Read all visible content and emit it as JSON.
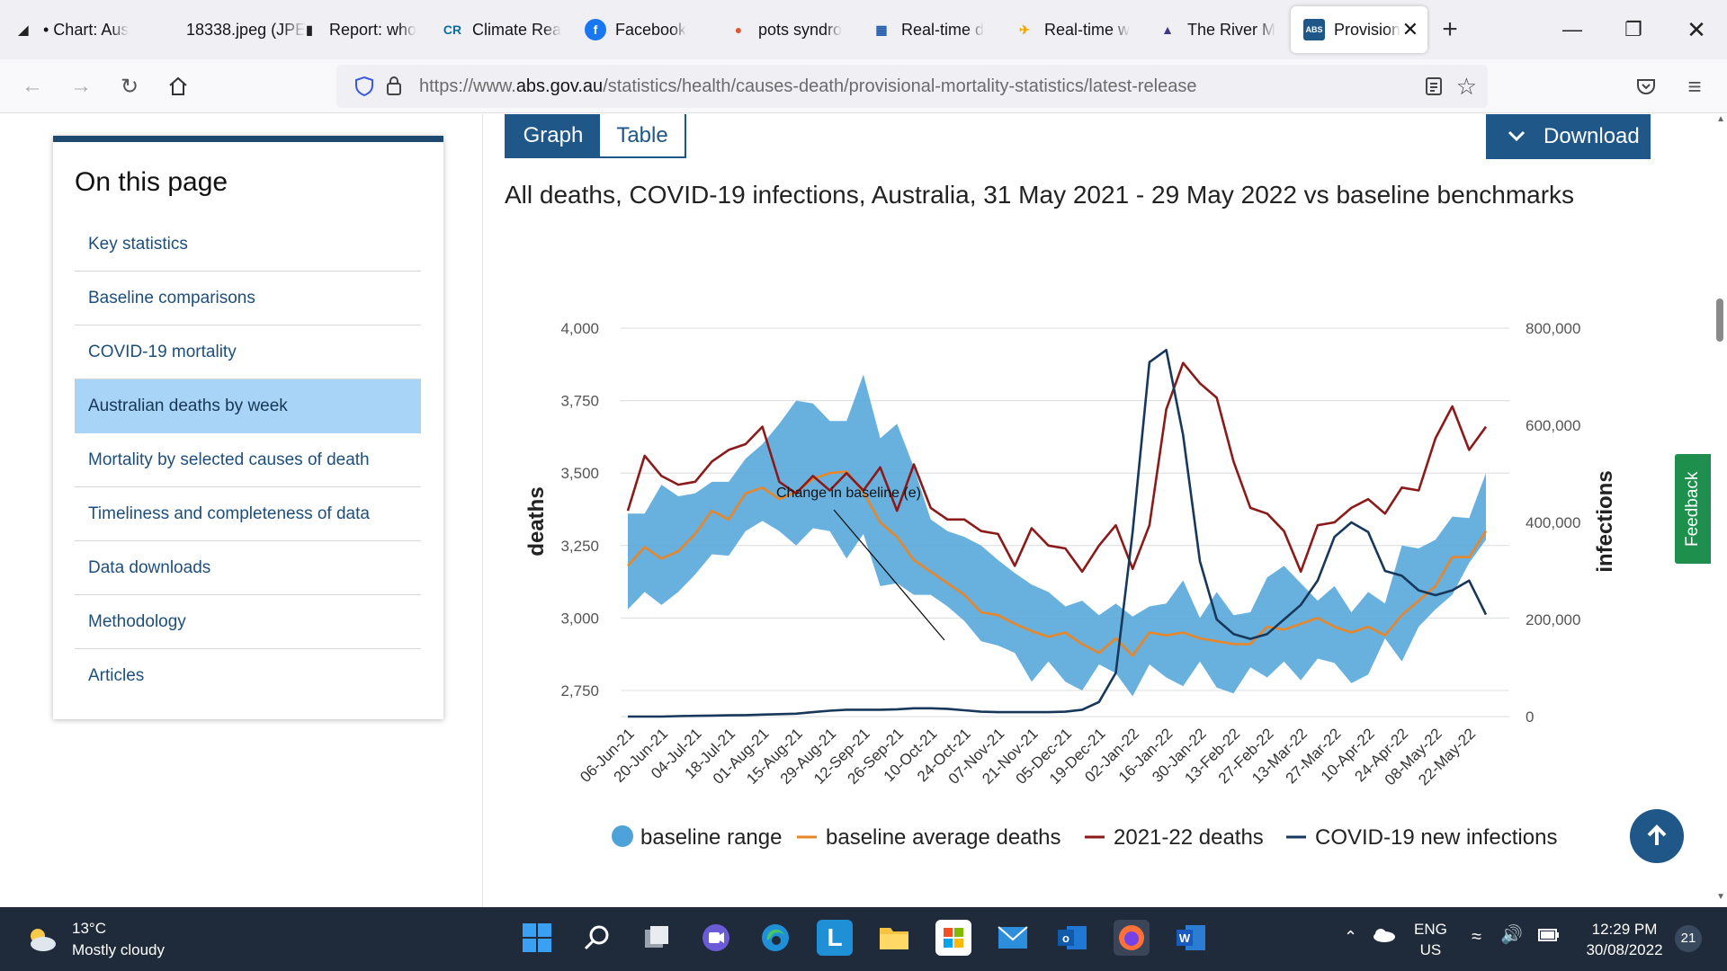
{
  "browser": {
    "tabs": [
      {
        "label": "• Chart: Aus",
        "icon": "chart-icon"
      },
      {
        "label": "18338.jpeg (JPE",
        "icon": "image-icon"
      },
      {
        "label": "Report: who",
        "icon": "report-icon"
      },
      {
        "label": "Climate Rea",
        "icon": "climate-icon"
      },
      {
        "label": "Facebook",
        "icon": "facebook-icon"
      },
      {
        "label": "pots syndro",
        "icon": "duckduckgo-icon"
      },
      {
        "label": "Real-time d",
        "icon": "realtime-icon"
      },
      {
        "label": "Real-time w",
        "icon": "plane-icon"
      },
      {
        "label": "The River M",
        "icon": "river-icon"
      },
      {
        "label": "Provision",
        "icon": "abs-icon"
      }
    ],
    "url_prefix": "https://www.",
    "url_domain": "abs.gov.au",
    "url_path": "/statistics/health/causes-death/provisional-mortality-statistics/latest-release"
  },
  "sidebar": {
    "title": "On this page",
    "items": [
      {
        "label": "Key statistics"
      },
      {
        "label": "Baseline comparisons"
      },
      {
        "label": "COVID-19 mortality"
      },
      {
        "label": "Australian deaths by week"
      },
      {
        "label": "Mortality by selected causes of death"
      },
      {
        "label": "Timeliness and completeness of data"
      },
      {
        "label": "Data downloads"
      },
      {
        "label": "Methodology"
      },
      {
        "label": "Articles"
      }
    ],
    "active_index": 3
  },
  "controls": {
    "graph_label": "Graph",
    "table_label": "Table",
    "download_label": "Download",
    "feedback_label": "Feedback"
  },
  "colors": {
    "accent": "#1f5789",
    "baseline_range": "#4da3d9",
    "baseline_average": "#e8862a",
    "deaths_2021_22": "#8b1a1a",
    "covid_infections": "#17385a"
  },
  "chart_data": {
    "type": "line",
    "title": "All deaths, COVID-19 infections, Australia, 31 May 2021 - 29 May 2022 vs baseline benchmarks",
    "ylabel": "deaths",
    "y2label": "infections",
    "ylim": [
      2650,
      4000
    ],
    "y2lim": [
      0,
      800000
    ],
    "yticks": [
      "4,000",
      "3,750",
      "3,500",
      "3,250",
      "3,000",
      "2,750"
    ],
    "yticks_values": [
      4000,
      3750,
      3500,
      3250,
      3000,
      2750
    ],
    "y2ticks": [
      "800,000",
      "600,000",
      "400,000",
      "200,000",
      "0"
    ],
    "y2ticks_values": [
      800000,
      600000,
      400000,
      200000,
      0
    ],
    "xticks": [
      "06-Jun-21",
      "20-Jun-21",
      "04-Jul-21",
      "18-Jul-21",
      "01-Aug-21",
      "15-Aug-21",
      "29-Aug-21",
      "12-Sep-21",
      "26-Sep-21",
      "10-Oct-21",
      "24-Oct-21",
      "07-Nov-21",
      "21-Nov-21",
      "05-Dec-21",
      "19-Dec-21",
      "02-Jan-22",
      "16-Jan-22",
      "30-Jan-22",
      "13-Feb-22",
      "27-Feb-22",
      "13-Mar-22",
      "27-Mar-22",
      "10-Apr-22",
      "24-Apr-22",
      "08-May-22",
      "22-May-22"
    ],
    "x": [
      "06-Jun-21",
      "13-Jun-21",
      "20-Jun-21",
      "27-Jun-21",
      "04-Jul-21",
      "11-Jul-21",
      "18-Jul-21",
      "25-Jul-21",
      "01-Aug-21",
      "08-Aug-21",
      "15-Aug-21",
      "22-Aug-21",
      "29-Aug-21",
      "05-Sep-21",
      "12-Sep-21",
      "19-Sep-21",
      "26-Sep-21",
      "03-Oct-21",
      "10-Oct-21",
      "17-Oct-21",
      "24-Oct-21",
      "31-Oct-21",
      "07-Nov-21",
      "14-Nov-21",
      "21-Nov-21",
      "28-Nov-21",
      "05-Dec-21",
      "12-Dec-21",
      "19-Dec-21",
      "26-Dec-21",
      "02-Jan-22",
      "09-Jan-22",
      "16-Jan-22",
      "23-Jan-22",
      "30-Jan-22",
      "06-Feb-22",
      "13-Feb-22",
      "20-Feb-22",
      "27-Feb-22",
      "06-Mar-22",
      "13-Mar-22",
      "20-Mar-22",
      "27-Mar-22",
      "03-Apr-22",
      "10-Apr-22",
      "17-Apr-22",
      "24-Apr-22",
      "01-May-22",
      "08-May-22",
      "15-May-22",
      "22-May-22",
      "29-May-22"
    ],
    "series": [
      {
        "name": "baseline range",
        "kind": "band",
        "low": [
          3030,
          3090,
          3045,
          3090,
          3150,
          3220,
          3215,
          3300,
          3335,
          3300,
          3250,
          3310,
          3300,
          3205,
          3290,
          3110,
          3120,
          3080,
          3080,
          3040,
          2990,
          2920,
          2905,
          2880,
          2780,
          2850,
          2780,
          2750,
          2840,
          2810,
          2730,
          2840,
          2795,
          2765,
          2850,
          2760,
          2740,
          2830,
          2795,
          2850,
          2785,
          2860,
          2845,
          2775,
          2805,
          2930,
          2850,
          2970,
          3030,
          3080,
          3190,
          3270
        ],
        "high": [
          3360,
          3360,
          3460,
          3420,
          3430,
          3470,
          3470,
          3550,
          3600,
          3670,
          3750,
          3740,
          3680,
          3680,
          3840,
          3620,
          3670,
          3520,
          3340,
          3300,
          3280,
          3250,
          3200,
          3155,
          3115,
          3090,
          3040,
          3060,
          3010,
          3050,
          3005,
          3040,
          3050,
          3130,
          3000,
          3090,
          3010,
          3020,
          3140,
          3180,
          3120,
          3060,
          3110,
          3020,
          3090,
          3050,
          3250,
          3240,
          3270,
          3350,
          3345,
          3500
        ]
      },
      {
        "name": "baseline average deaths",
        "kind": "line",
        "values": [
          3180,
          3245,
          3205,
          3230,
          3290,
          3370,
          3340,
          3430,
          3450,
          3410,
          3435,
          3480,
          3500,
          3505,
          3435,
          3330,
          3280,
          3200,
          3160,
          3120,
          3080,
          3020,
          3010,
          2980,
          2955,
          2935,
          2950,
          2910,
          2880,
          2930,
          2870,
          2950,
          2940,
          2950,
          2930,
          2920,
          2910,
          2910,
          2970,
          2960,
          2980,
          3000,
          2970,
          2950,
          2970,
          2940,
          3010,
          3060,
          3110,
          3210,
          3210,
          3300
        ]
      },
      {
        "name": "2021-22 deaths",
        "kind": "line",
        "values": [
          3370,
          3560,
          3490,
          3460,
          3470,
          3540,
          3580,
          3600,
          3660,
          3470,
          3430,
          3490,
          3440,
          3500,
          3440,
          3520,
          3370,
          3530,
          3380,
          3340,
          3340,
          3300,
          3290,
          3180,
          3310,
          3250,
          3240,
          3160,
          3250,
          3320,
          3170,
          3320,
          3720,
          3880,
          3810,
          3760,
          3540,
          3380,
          3360,
          3300,
          3160,
          3320,
          3330,
          3380,
          3410,
          3360,
          3450,
          3440,
          3620,
          3730,
          3580,
          3660
        ]
      },
      {
        "name": "COVID-19 new infections",
        "kind": "line",
        "axis": "y2",
        "values": [
          0,
          0,
          0,
          1000,
          1500,
          2000,
          2500,
          3000,
          4000,
          5000,
          6000,
          9000,
          12000,
          14000,
          14000,
          14000,
          15000,
          17000,
          17000,
          16000,
          13000,
          10000,
          9000,
          9000,
          9000,
          9000,
          10000,
          14000,
          30000,
          90000,
          380000,
          730000,
          755000,
          580000,
          320000,
          200000,
          170000,
          160000,
          170000,
          200000,
          230000,
          280000,
          370000,
          400000,
          380000,
          300000,
          290000,
          260000,
          250000,
          260000,
          280000,
          210000
        ]
      }
    ],
    "annotation": "Change in baseline (e)",
    "legend": [
      "baseline range",
      "baseline average deaths",
      "2021-22 deaths",
      "COVID-19 new infections"
    ],
    "legend_position": "bottom",
    "grid": true
  },
  "taskbar": {
    "temperature": "13°C",
    "weather": "Mostly cloudy",
    "lang_top": "ENG",
    "lang_bottom": "US",
    "time": "12:29 PM",
    "date": "30/08/2022",
    "notifications": "21"
  }
}
